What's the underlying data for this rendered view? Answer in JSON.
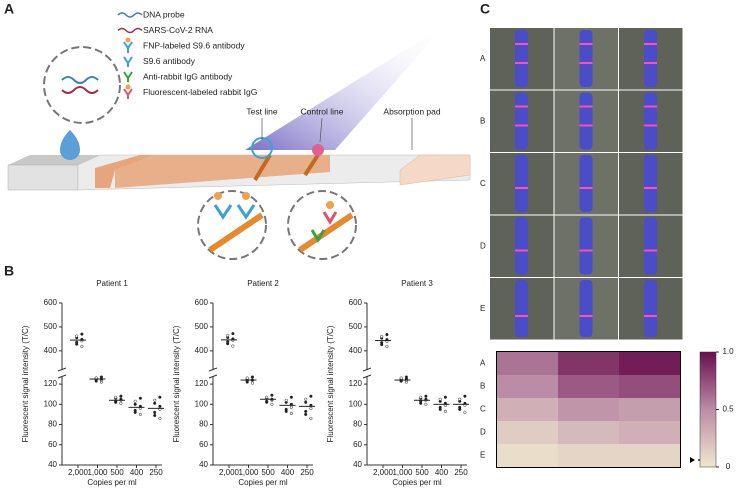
{
  "panel_labels": [
    "A",
    "B",
    "C"
  ],
  "panel_a": {
    "legend": [
      "DNA probe",
      "SARS-CoV-2 RNA",
      "FNP-labeled S9.6 antibody",
      "S9.6 antibody",
      "Anti-rabbit IgG antibody",
      "Fluorescent-labeled rabbit IgG"
    ],
    "test_line": "Test line",
    "control_line": "Control line",
    "absorption_pad": "Absorption pad"
  },
  "panel_c": {
    "strip_rows": [
      "A",
      "B",
      "C",
      "D",
      "E"
    ]
  },
  "chart_data": [
    {
      "type": "scatter",
      "title": "Patient 1",
      "ylabel": "Fluorescent signal intensity (T/C)",
      "xlabel": "Copies per ml",
      "categories": [
        "2,000",
        "1,000",
        "500",
        "400",
        "250"
      ],
      "color": "#222222",
      "upper": {
        "ylim": [
          320,
          600
        ],
        "yticks": [
          400,
          500,
          600
        ]
      },
      "lower": {
        "ylim": [
          40,
          128
        ],
        "yticks": [
          40,
          60,
          80,
          100,
          120
        ]
      },
      "values": [
        [
          418,
          428,
          436,
          442,
          448,
          455,
          462,
          470
        ],
        [
          122,
          123,
          124,
          124,
          125,
          126,
          126,
          127
        ],
        [
          101,
          102,
          103,
          104,
          105,
          106,
          107,
          108
        ],
        [
          90,
          92,
          94,
          96,
          98,
          100,
          103,
          106
        ],
        [
          86,
          89,
          92,
          95,
          98,
          101,
          104,
          107
        ]
      ],
      "means": [
        445,
        125,
        104,
        97,
        96
      ]
    },
    {
      "type": "scatter",
      "title": "Patient 2",
      "ylabel": "Fluorescent signal intensity (T/C)",
      "xlabel": "Copies per ml",
      "categories": [
        "2,000",
        "1,000",
        "500",
        "400",
        "250"
      ],
      "color": "#222222",
      "upper": {
        "ylim": [
          320,
          600
        ],
        "yticks": [
          400,
          500,
          600
        ]
      },
      "lower": {
        "ylim": [
          40,
          128
        ],
        "yticks": [
          40,
          60,
          80,
          100,
          120
        ]
      },
      "values": [
        [
          420,
          430,
          438,
          444,
          450,
          456,
          464,
          472
        ],
        [
          121,
          122,
          123,
          124,
          124,
          125,
          126,
          127
        ],
        [
          100,
          102,
          103,
          104,
          105,
          106,
          107,
          109
        ],
        [
          91,
          93,
          95,
          97,
          100,
          102,
          104,
          107
        ],
        [
          86,
          90,
          93,
          96,
          99,
          102,
          105,
          108
        ]
      ],
      "means": [
        446,
        124,
        105,
        99,
        98
      ]
    },
    {
      "type": "scatter",
      "title": "Patient 3",
      "ylabel": "Fluorescent signal intensity (T/C)",
      "xlabel": "Copies per ml",
      "categories": [
        "2,000",
        "1,000",
        "500",
        "400",
        "250"
      ],
      "color": "#222222",
      "upper": {
        "ylim": [
          320,
          600
        ],
        "yticks": [
          400,
          500,
          600
        ]
      },
      "lower": {
        "ylim": [
          40,
          128
        ],
        "yticks": [
          40,
          60,
          80,
          100,
          120
        ]
      },
      "values": [
        [
          418,
          426,
          434,
          440,
          447,
          453,
          460,
          468
        ],
        [
          122,
          123,
          123,
          124,
          125,
          125,
          126,
          127
        ],
        [
          100,
          101,
          103,
          104,
          105,
          106,
          107,
          108
        ],
        [
          93,
          95,
          97,
          99,
          101,
          103,
          105,
          107
        ],
        [
          92,
          95,
          97,
          99,
          101,
          103,
          105,
          108
        ]
      ],
      "means": [
        443,
        124,
        104,
        100,
        100
      ]
    },
    {
      "type": "heatmap",
      "rows": [
        "A",
        "B",
        "C",
        "D",
        "E"
      ],
      "values": [
        [
          0.6,
          0.85,
          0.95
        ],
        [
          0.5,
          0.7,
          0.75
        ],
        [
          0.3,
          0.45,
          0.4
        ],
        [
          0.15,
          0.25,
          0.3
        ],
        [
          0.05,
          0.1,
          0.1
        ]
      ],
      "colors": [
        "#efe7cf",
        "#bb8ca6",
        "#6a0f4f"
      ],
      "colorbar": {
        "lim": [
          0,
          1
        ],
        "ticks": [
          0,
          0.5,
          {
            "value": 1,
            "label": "1.0"
          }
        ]
      }
    }
  ]
}
